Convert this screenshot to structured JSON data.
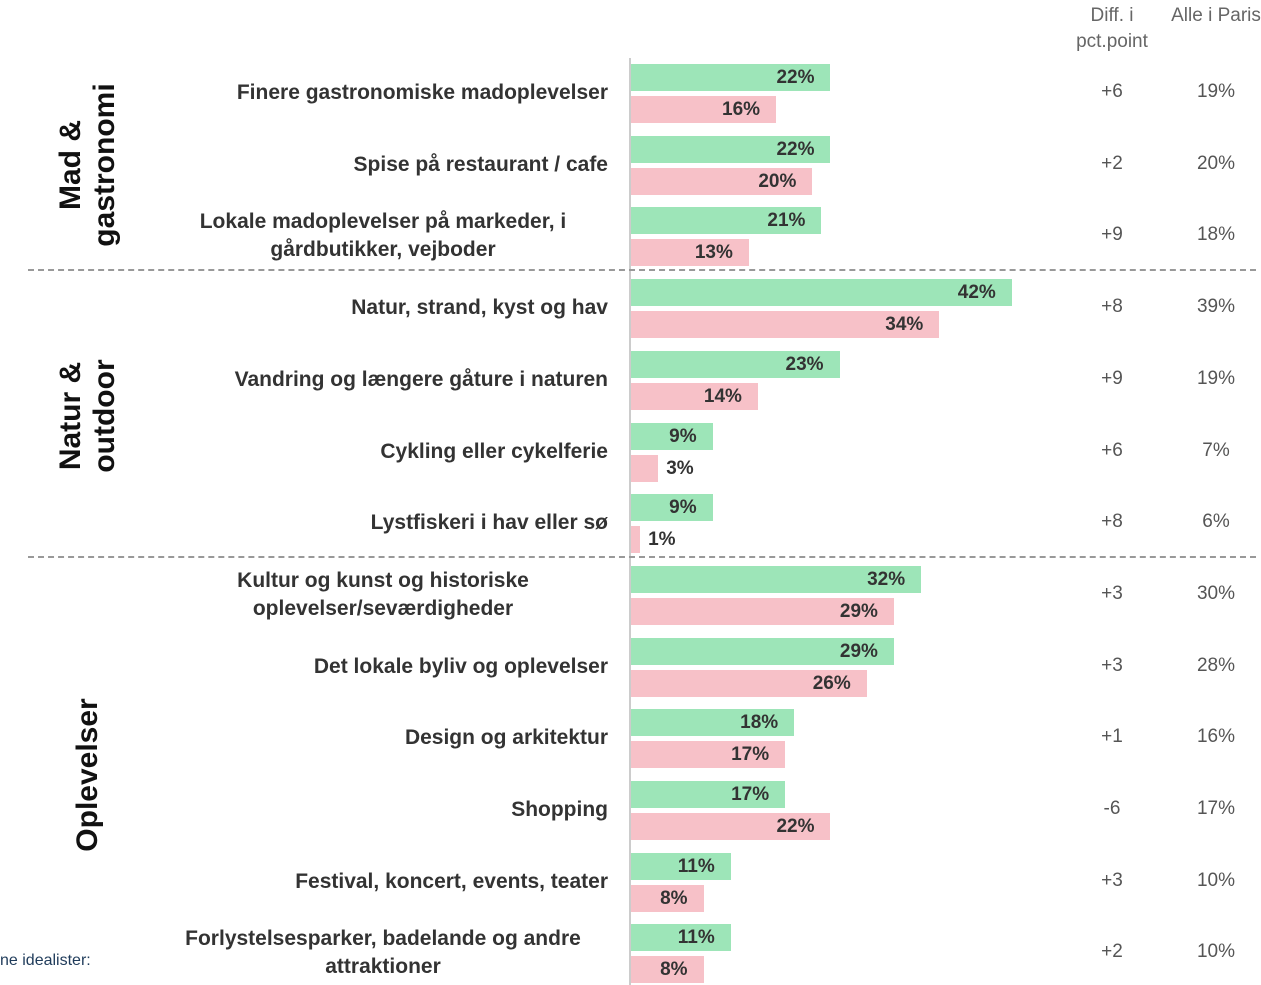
{
  "chart_data": {
    "type": "bar",
    "orientation": "horizontal",
    "categories": [
      "Finere gastronomiske madoplevelser",
      "Spise på restaurant / cafe",
      "Lokale madoplevelser på markeder, i gårdbutikker, vejboder",
      "Natur, strand, kyst og hav",
      "Vandring og længere gåture i naturen",
      "Cykling eller cykelferie",
      "Lystfiskeri i hav eller sø",
      "Kultur og kunst og historiske oplevelser/seværdigheder",
      "Det lokale byliv og oplevelser",
      "Design og arkitektur",
      "Shopping",
      "Festival, koncert, events, teater",
      "Forlystelsesparker, badelande og andre attraktioner"
    ],
    "groups": [
      {
        "label": "Mad & gastronomi",
        "size": 3
      },
      {
        "label": "Natur & outdoor",
        "size": 4
      },
      {
        "label": "Oplevelser",
        "size": 6
      }
    ],
    "series": [
      {
        "color": "#9de5b8",
        "values": [
          22,
          22,
          21,
          42,
          23,
          9,
          9,
          32,
          29,
          18,
          17,
          11,
          11
        ],
        "value_labels": [
          "22%",
          "22%",
          "21%",
          "42%",
          "23%",
          "9%",
          "9%",
          "32%",
          "29%",
          "18%",
          "17%",
          "11%",
          "11%"
        ]
      },
      {
        "color": "#f7c1c8",
        "values": [
          16,
          20,
          13,
          34,
          14,
          3,
          1,
          29,
          26,
          17,
          22,
          8,
          8
        ],
        "value_labels": [
          "16%",
          "20%",
          "13%",
          "34%",
          "14%",
          "3%",
          "1%",
          "29%",
          "26%",
          "17%",
          "22%",
          "8%",
          "8%"
        ]
      }
    ],
    "xlim": [
      0,
      45
    ],
    "columns": [
      {
        "header": "Diff. i pct.point",
        "values": [
          "+6",
          "+2",
          "+9",
          "+8",
          "+9",
          "+6",
          "+8",
          "+3",
          "+3",
          "+1",
          "-6",
          "+3",
          "+2"
        ]
      },
      {
        "header": "Alle i Paris",
        "values": [
          "19%",
          "20%",
          "18%",
          "39%",
          "19%",
          "7%",
          "6%",
          "30%",
          "28%",
          "16%",
          "17%",
          "10%",
          "10%"
        ]
      }
    ],
    "footnote": "ne idealister:"
  }
}
